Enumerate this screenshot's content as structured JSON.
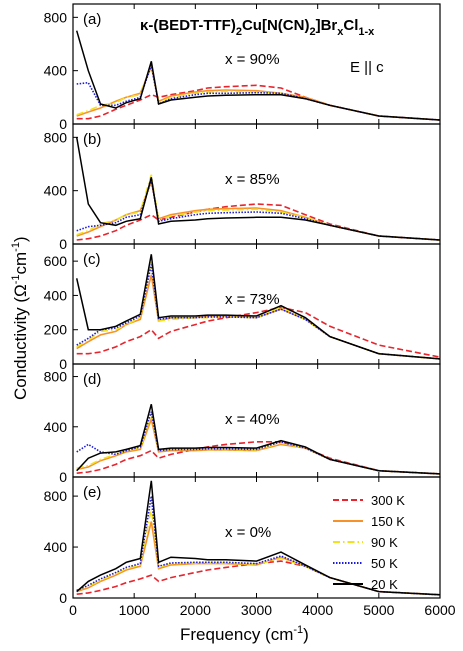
{
  "figure": {
    "title_main": "κ-(BEDT-TTF)",
    "title_sub1": "2",
    "title_mid": "Cu[N(CN)",
    "title_sub2": "2",
    "title_mid2": "]Br",
    "title_sub3": "x",
    "title_mid3": "Cl",
    "title_sub4": "1-x",
    "polarization": "E || c",
    "xlabel_main": "Frequency (cm",
    "xlabel_sup": "-1",
    "xlabel_end": ")",
    "ylabel_main": "Conductivity (Ω",
    "ylabel_sup1": "-1",
    "ylabel_mid": "cm",
    "ylabel_sup2": "-1",
    "ylabel_end": ")"
  },
  "colors": {
    "300 K": "#e8242c",
    "150 K": "#f7922b",
    "90 K": "#f2e21c",
    "50 K": "#1c1cd8",
    "20 K": "#000000"
  },
  "chart_data": [
    {
      "type": "line",
      "panel": "(a)",
      "label": "x = 90%",
      "x": [
        60,
        250,
        450,
        700,
        870,
        1100,
        1280,
        1400,
        1600,
        2000,
        2200,
        2500,
        3000,
        3400,
        3800,
        4200,
        5000,
        6000
      ],
      "xlim": [
        0,
        6000
      ],
      "ylim": [
        0,
        900
      ],
      "yticks": [
        0,
        400,
        800
      ],
      "series": [
        {
          "name": "300 K",
          "style": "dashed",
          "values": [
            40,
            40,
            60,
            110,
            140,
            180,
            220,
            200,
            220,
            250,
            270,
            280,
            290,
            270,
            200,
            140,
            60,
            30
          ]
        },
        {
          "name": "150 K",
          "style": "solid",
          "values": [
            60,
            90,
            120,
            170,
            200,
            230,
            430,
            170,
            210,
            240,
            250,
            255,
            250,
            230,
            200,
            140,
            60,
            30
          ]
        },
        {
          "name": "90 K",
          "style": "dashdot",
          "values": [
            70,
            100,
            140,
            160,
            200,
            220,
            450,
            160,
            200,
            230,
            240,
            245,
            240,
            230,
            190,
            140,
            60,
            30
          ]
        },
        {
          "name": "50 K",
          "style": "dotted",
          "values": [
            300,
            310,
            140,
            140,
            170,
            200,
            440,
            150,
            190,
            220,
            230,
            230,
            235,
            230,
            190,
            140,
            60,
            30
          ]
        },
        {
          "name": "20 K",
          "style": "solid",
          "values": [
            700,
            400,
            150,
            120,
            160,
            190,
            470,
            150,
            180,
            200,
            210,
            215,
            220,
            220,
            190,
            140,
            60,
            30
          ]
        }
      ]
    },
    {
      "type": "line",
      "panel": "(b)",
      "label": "x = 85%",
      "x": [
        60,
        250,
        450,
        700,
        870,
        1100,
        1280,
        1400,
        1600,
        2000,
        2200,
        2500,
        3000,
        3400,
        3800,
        4200,
        5000,
        6000
      ],
      "xlim": [
        0,
        6000
      ],
      "ylim": [
        0,
        900
      ],
      "yticks": [
        0,
        400,
        800
      ],
      "series": [
        {
          "name": "300 K",
          "style": "dashed",
          "values": [
            30,
            40,
            60,
            100,
            140,
            180,
            220,
            180,
            200,
            240,
            260,
            280,
            300,
            290,
            220,
            150,
            60,
            30
          ]
        },
        {
          "name": "150 K",
          "style": "solid",
          "values": [
            60,
            90,
            130,
            180,
            220,
            250,
            470,
            190,
            220,
            250,
            260,
            265,
            270,
            250,
            200,
            140,
            60,
            30
          ]
        },
        {
          "name": "90 K",
          "style": "dashdot",
          "values": [
            70,
            100,
            150,
            180,
            220,
            240,
            520,
            180,
            210,
            240,
            250,
            255,
            260,
            240,
            200,
            140,
            60,
            30
          ]
        },
        {
          "name": "50 K",
          "style": "dotted",
          "values": [
            100,
            130,
            140,
            160,
            200,
            220,
            480,
            170,
            190,
            220,
            230,
            235,
            240,
            230,
            190,
            140,
            60,
            30
          ]
        },
        {
          "name": "20 K",
          "style": "solid",
          "values": [
            800,
            300,
            160,
            140,
            170,
            190,
            500,
            150,
            170,
            180,
            190,
            195,
            200,
            200,
            180,
            140,
            60,
            30
          ]
        }
      ]
    },
    {
      "type": "line",
      "panel": "(c)",
      "label": "x = 73%",
      "x": [
        60,
        250,
        450,
        700,
        870,
        1100,
        1280,
        1400,
        1600,
        2000,
        2200,
        2500,
        3000,
        3400,
        3800,
        4200,
        5000,
        6000
      ],
      "xlim": [
        0,
        6000
      ],
      "ylim": [
        0,
        700
      ],
      "yticks": [
        0,
        200,
        400,
        600
      ],
      "series": [
        {
          "name": "300 K",
          "style": "dashed",
          "values": [
            60,
            60,
            70,
            100,
            130,
            160,
            200,
            150,
            190,
            230,
            250,
            270,
            300,
            330,
            300,
            220,
            110,
            40
          ]
        },
        {
          "name": "150 K",
          "style": "solid",
          "values": [
            90,
            130,
            170,
            190,
            230,
            260,
            520,
            250,
            270,
            270,
            280,
            280,
            270,
            320,
            260,
            160,
            60,
            30
          ]
        },
        {
          "name": "90 K",
          "style": "dashdot",
          "values": [
            100,
            140,
            190,
            200,
            230,
            270,
            600,
            250,
            260,
            270,
            270,
            275,
            270,
            330,
            260,
            160,
            60,
            30
          ]
        },
        {
          "name": "50 K",
          "style": "dotted",
          "values": [
            110,
            150,
            200,
            210,
            240,
            280,
            580,
            260,
            270,
            270,
            275,
            275,
            270,
            320,
            260,
            160,
            60,
            30
          ]
        },
        {
          "name": "20 K",
          "style": "solid",
          "values": [
            500,
            200,
            200,
            220,
            250,
            290,
            640,
            270,
            280,
            280,
            285,
            285,
            280,
            340,
            270,
            160,
            60,
            30
          ]
        }
      ]
    },
    {
      "type": "line",
      "panel": "(d)",
      "label": "x = 40%",
      "x": [
        60,
        250,
        450,
        700,
        870,
        1100,
        1280,
        1400,
        1600,
        2000,
        2200,
        2500,
        3000,
        3400,
        3800,
        4200,
        5000,
        6000
      ],
      "xlim": [
        0,
        6000
      ],
      "ylim": [
        0,
        900
      ],
      "yticks": [
        0,
        400,
        800
      ],
      "series": [
        {
          "name": "300 K",
          "style": "dashed",
          "values": [
            30,
            40,
            60,
            100,
            140,
            170,
            210,
            150,
            180,
            220,
            240,
            260,
            280,
            280,
            230,
            150,
            50,
            25
          ]
        },
        {
          "name": "150 K",
          "style": "solid",
          "values": [
            60,
            80,
            130,
            170,
            200,
            220,
            460,
            200,
            210,
            210,
            215,
            215,
            210,
            260,
            230,
            140,
            50,
            25
          ]
        },
        {
          "name": "90 K",
          "style": "dashdot",
          "values": [
            70,
            90,
            140,
            180,
            210,
            230,
            500,
            210,
            220,
            220,
            220,
            220,
            215,
            270,
            230,
            140,
            50,
            25
          ]
        },
        {
          "name": "50 K",
          "style": "dotted",
          "values": [
            200,
            260,
            200,
            180,
            210,
            240,
            520,
            210,
            220,
            220,
            225,
            225,
            220,
            280,
            230,
            140,
            50,
            25
          ]
        },
        {
          "name": "20 K",
          "style": "solid",
          "values": [
            50,
            150,
            190,
            200,
            220,
            250,
            580,
            220,
            230,
            230,
            235,
            235,
            230,
            290,
            240,
            140,
            50,
            25
          ]
        }
      ]
    },
    {
      "type": "line",
      "panel": "(e)",
      "label": "x = 0%",
      "x": [
        60,
        250,
        450,
        700,
        870,
        1100,
        1280,
        1400,
        1600,
        2000,
        2200,
        2500,
        3000,
        3400,
        3800,
        4200,
        5000,
        6000
      ],
      "xlim": [
        0,
        6000
      ],
      "ylim": [
        0,
        950
      ],
      "yticks": [
        0,
        400,
        800
      ],
      "series": [
        {
          "name": "300 K",
          "style": "dashed",
          "values": [
            30,
            40,
            60,
            90,
            120,
            150,
            180,
            130,
            160,
            200,
            220,
            240,
            270,
            290,
            250,
            160,
            50,
            25
          ]
        },
        {
          "name": "150 K",
          "style": "solid",
          "values": [
            50,
            80,
            130,
            180,
            220,
            250,
            600,
            230,
            260,
            270,
            270,
            270,
            260,
            320,
            250,
            160,
            50,
            25
          ]
        },
        {
          "name": "90 K",
          "style": "dashdot",
          "values": [
            60,
            90,
            140,
            190,
            230,
            260,
            700,
            240,
            270,
            275,
            275,
            275,
            265,
            310,
            250,
            160,
            50,
            25
          ]
        },
        {
          "name": "50 K",
          "style": "dotted",
          "values": [
            60,
            100,
            150,
            200,
            240,
            270,
            800,
            250,
            275,
            280,
            280,
            280,
            270,
            330,
            250,
            160,
            50,
            25
          ]
        },
        {
          "name": "20 K",
          "style": "solid",
          "values": [
            50,
            130,
            180,
            230,
            280,
            310,
            920,
            280,
            320,
            310,
            300,
            300,
            290,
            360,
            260,
            160,
            50,
            25
          ]
        }
      ]
    }
  ],
  "x_ticks": [
    "0",
    "1000",
    "2000",
    "3000",
    "4000",
    "5000",
    "6000"
  ],
  "legend": [
    "300 K",
    "150 K",
    "90 K",
    "50 K",
    "20 K"
  ]
}
